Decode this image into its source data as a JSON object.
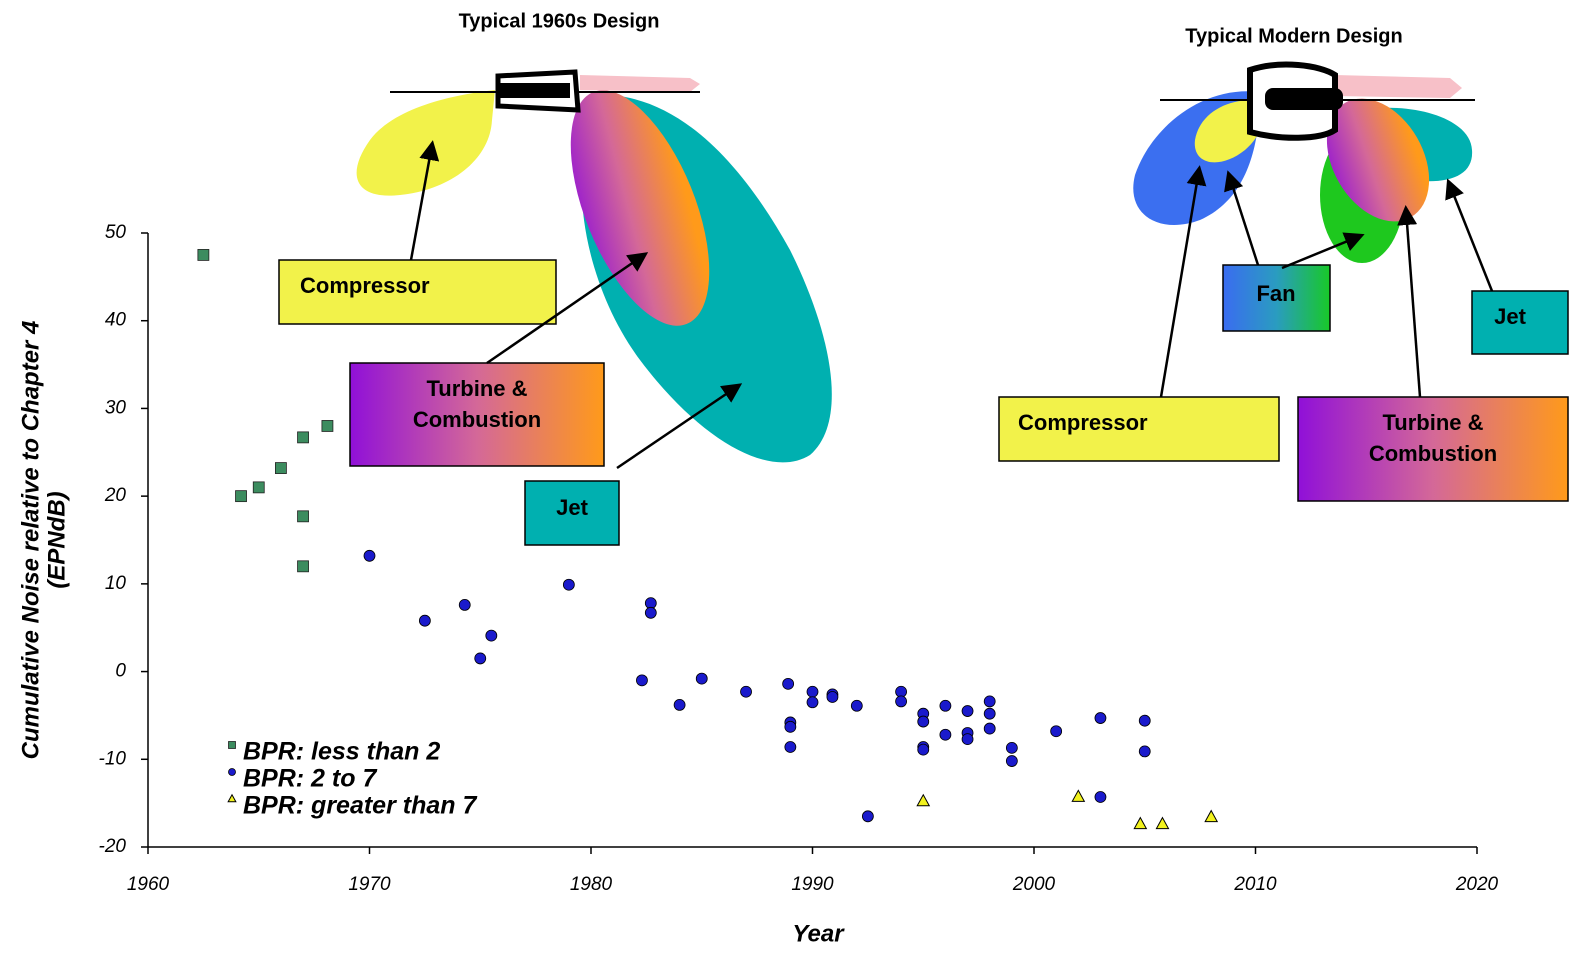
{
  "chart_data": {
    "type": "scatter",
    "x_label": "Year",
    "y_label": [
      "Cumulative Noise relative to Chapter 4",
      "(EPNdB)"
    ],
    "xlim": [
      1960,
      2020
    ],
    "xticks": [
      1960,
      1970,
      1980,
      1990,
      2000,
      2010,
      2020
    ],
    "ylim": [
      -20,
      50
    ],
    "yticks": [
      -20,
      -10,
      0,
      10,
      20,
      30,
      40,
      50
    ],
    "grid": false,
    "legend": "lower left",
    "series": [
      {
        "name": "BPR: less than 2",
        "marker": "square",
        "color": "#3c8c5f",
        "x": [
          1962.5,
          1964.2,
          1965.0,
          1966.0,
          1967.0,
          1968.1,
          1967.0,
          1967.0
        ],
        "values": [
          47.5,
          20.0,
          21.0,
          23.2,
          26.7,
          28.0,
          17.7,
          12.0
        ]
      },
      {
        "name": "BPR: 2 to 7",
        "marker": "circle",
        "color": "#1a1acc",
        "x": [
          1970.0,
          1972.5,
          1974.3,
          1975.5,
          1975.0,
          1979.0,
          1982.7,
          1982.7,
          1982.3,
          1984.0,
          1985.0,
          1987.0,
          1988.9,
          1989.0,
          1989.0,
          1989.0,
          1990.0,
          1990.0,
          1990.9,
          1990.9,
          1992.0,
          1992.5,
          1994.0,
          1994.0,
          1995.0,
          1995.0,
          1995.0,
          1995.0,
          1996.0,
          1996.0,
          1997.0,
          1997.0,
          1997.0,
          1998.0,
          1998.0,
          1998.0,
          1999.0,
          1999.0,
          2001.0,
          2003.0,
          2003.0,
          2005.0,
          2005.0
        ],
        "values": [
          13.2,
          5.8,
          7.6,
          4.1,
          1.5,
          9.9,
          7.8,
          6.7,
          -1.0,
          -3.8,
          -0.8,
          -2.3,
          -1.4,
          -5.8,
          -6.3,
          -8.6,
          -2.3,
          -3.5,
          -2.6,
          -2.9,
          -3.9,
          -16.5,
          -2.3,
          -3.4,
          -4.8,
          -5.7,
          -8.6,
          -8.9,
          -3.9,
          -7.2,
          -4.5,
          -7.0,
          -7.7,
          -3.4,
          -4.8,
          -6.5,
          -8.7,
          -10.2,
          -6.8,
          -5.3,
          -14.3,
          -5.6,
          -9.1
        ]
      },
      {
        "name": "BPR: greater than 7",
        "marker": "triangle",
        "color": "#f2f21e",
        "x": [
          1995.0,
          2002.0,
          2004.8,
          2005.8,
          2008.0
        ],
        "values": [
          -14.8,
          -14.3,
          -17.4,
          -17.4,
          -16.6
        ]
      }
    ],
    "annotations": [
      {
        "lines": [
          "Typical 1960s Design"
        ]
      },
      {
        "lines": [
          "Typical Modern Design"
        ]
      },
      {
        "lines": [
          "Compressor"
        ]
      },
      {
        "lines": [
          "Turbine &",
          "Combustion"
        ]
      },
      {
        "lines": [
          "Jet"
        ]
      },
      {
        "lines": [
          "Fan"
        ]
      },
      {
        "lines": [
          "Jet"
        ]
      },
      {
        "lines": [
          "Compressor"
        ]
      },
      {
        "lines": [
          "Turbine &",
          "Combustion"
        ]
      }
    ]
  }
}
